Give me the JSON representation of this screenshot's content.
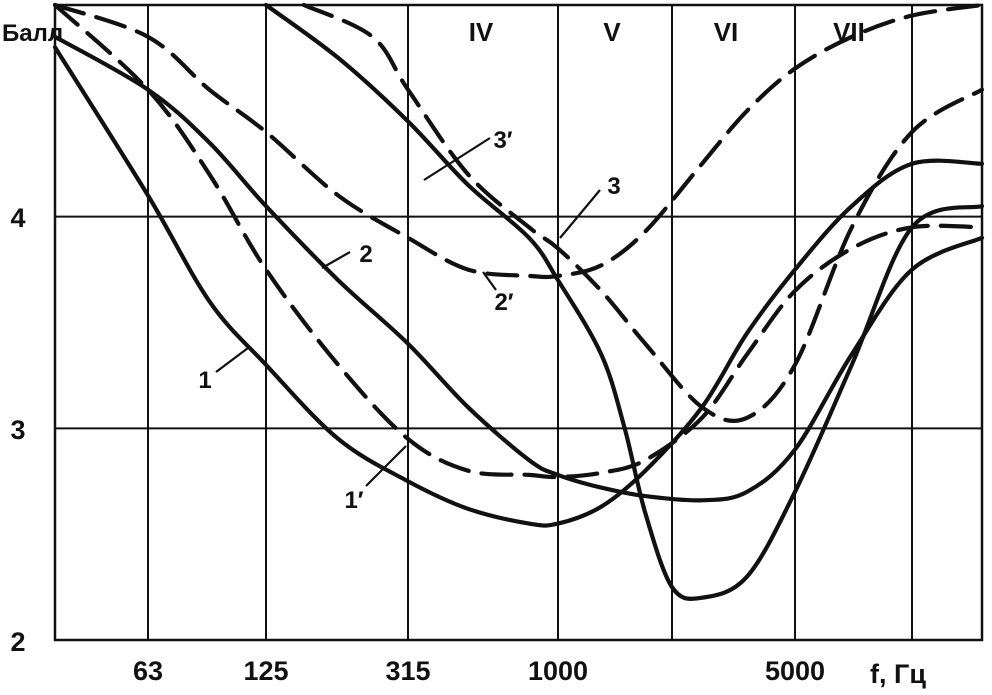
{
  "chart_data": {
    "type": "line",
    "ylabel": "Балл",
    "xlabel": "f, Гц",
    "ylim": [
      2,
      5
    ],
    "y_ticks": [
      {
        "value": 2,
        "label": "2"
      },
      {
        "value": 3,
        "label": "3"
      },
      {
        "value": 4,
        "label": "4"
      }
    ],
    "x_scale": "log (octave bands)",
    "x_ticks": [
      {
        "value": 63,
        "label": "63"
      },
      {
        "value": 125,
        "label": "125"
      },
      {
        "value": 315,
        "label": "315"
      },
      {
        "value": 1000,
        "label": "1000"
      },
      {
        "value": 5000,
        "label": "5000"
      }
    ],
    "bands": [
      "IV",
      "V",
      "VI",
      "VII"
    ],
    "grid": true,
    "series": [
      {
        "name": "1",
        "style": "solid",
        "points": [
          [
            40,
            4.8
          ],
          [
            63,
            4.1
          ],
          [
            90,
            3.6
          ],
          [
            125,
            3.3
          ],
          [
            200,
            2.95
          ],
          [
            315,
            2.75
          ],
          [
            500,
            2.62
          ],
          [
            800,
            2.55
          ],
          [
            1000,
            2.55
          ],
          [
            1300,
            2.63
          ],
          [
            1700,
            2.8
          ],
          [
            2500,
            3.1
          ],
          [
            3500,
            3.45
          ],
          [
            5000,
            3.75
          ],
          [
            7000,
            4.05
          ],
          [
            10000,
            4.25
          ],
          [
            12500,
            4.25
          ]
        ]
      },
      {
        "name": "1′",
        "style": "dashed",
        "points": [
          [
            40,
            5.0
          ],
          [
            63,
            4.6
          ],
          [
            90,
            4.2
          ],
          [
            125,
            3.75
          ],
          [
            200,
            3.3
          ],
          [
            315,
            2.95
          ],
          [
            500,
            2.8
          ],
          [
            800,
            2.78
          ],
          [
            1000,
            2.77
          ],
          [
            1300,
            2.79
          ],
          [
            1700,
            2.85
          ],
          [
            2500,
            3.05
          ],
          [
            3500,
            3.35
          ],
          [
            5000,
            3.65
          ],
          [
            7000,
            3.85
          ],
          [
            10000,
            3.95
          ],
          [
            12500,
            3.95
          ]
        ]
      },
      {
        "name": "2",
        "style": "solid",
        "points": [
          [
            40,
            4.85
          ],
          [
            63,
            4.6
          ],
          [
            90,
            4.35
          ],
          [
            125,
            4.05
          ],
          [
            200,
            3.7
          ],
          [
            315,
            3.4
          ],
          [
            500,
            3.1
          ],
          [
            800,
            2.85
          ],
          [
            1000,
            2.78
          ],
          [
            1300,
            2.72
          ],
          [
            1700,
            2.68
          ],
          [
            2500,
            2.66
          ],
          [
            3500,
            2.7
          ],
          [
            5000,
            2.9
          ],
          [
            7000,
            3.35
          ],
          [
            10000,
            3.75
          ],
          [
            12500,
            3.9
          ]
        ]
      },
      {
        "name": "2′",
        "style": "dashed",
        "points": [
          [
            40,
            5.0
          ],
          [
            63,
            4.85
          ],
          [
            90,
            4.6
          ],
          [
            125,
            4.4
          ],
          [
            200,
            4.1
          ],
          [
            315,
            3.9
          ],
          [
            500,
            3.75
          ],
          [
            800,
            3.72
          ],
          [
            1000,
            3.72
          ],
          [
            1300,
            3.77
          ],
          [
            1700,
            3.93
          ],
          [
            2500,
            4.25
          ],
          [
            3500,
            4.5
          ],
          [
            5000,
            4.7
          ],
          [
            7000,
            4.85
          ],
          [
            10000,
            4.95
          ],
          [
            12500,
            5.0
          ]
        ]
      },
      {
        "name": "3",
        "style": "solid",
        "points": [
          [
            125,
            5.0
          ],
          [
            200,
            4.75
          ],
          [
            315,
            4.45
          ],
          [
            500,
            4.15
          ],
          [
            800,
            3.9
          ],
          [
            1000,
            3.7
          ],
          [
            1300,
            3.35
          ],
          [
            1500,
            3.0
          ],
          [
            1700,
            2.6
          ],
          [
            2000,
            2.25
          ],
          [
            2500,
            2.2
          ],
          [
            3500,
            2.3
          ],
          [
            5000,
            2.7
          ],
          [
            7000,
            3.3
          ],
          [
            10000,
            3.95
          ],
          [
            12500,
            4.05
          ]
        ]
      },
      {
        "name": "3′",
        "style": "dashed",
        "points": [
          [
            160,
            5.0
          ],
          [
            250,
            4.85
          ],
          [
            315,
            4.6
          ],
          [
            500,
            4.2
          ],
          [
            800,
            3.95
          ],
          [
            1000,
            3.85
          ],
          [
            1300,
            3.65
          ],
          [
            1700,
            3.4
          ],
          [
            2500,
            3.1
          ],
          [
            3500,
            3.05
          ],
          [
            5000,
            3.3
          ],
          [
            7000,
            3.95
          ],
          [
            10000,
            4.4
          ],
          [
            12500,
            4.6
          ]
        ]
      }
    ]
  }
}
